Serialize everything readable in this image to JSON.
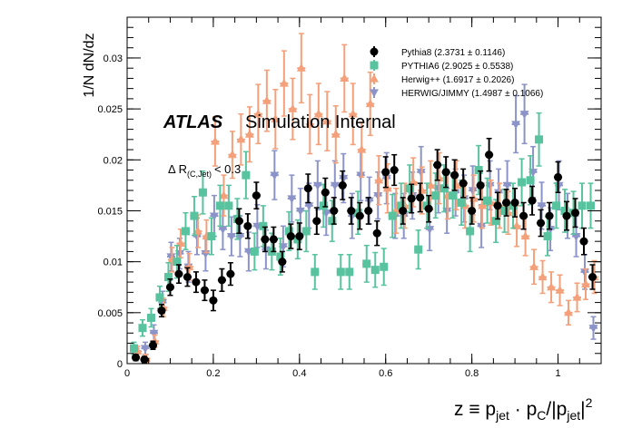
{
  "chart_data": {
    "type": "scatter",
    "ylabel": "1/N dN/dz",
    "xlabel_main": "z ≡ p",
    "xlabel_sub1": "jet",
    "xlabel_dot": " · p",
    "xlabel_sub2": "C",
    "xlabel_slash": "/|p",
    "xlabel_sub3": "jet",
    "xlabel_bar": "|",
    "xlabel_sup": "2",
    "xlim": [
      0,
      1.1
    ],
    "ylim": [
      0,
      0.034
    ],
    "x_ticks": [
      0,
      0.2,
      0.4,
      0.6,
      0.8,
      1
    ],
    "x_tick_labels": [
      "0",
      "0.2",
      "0.4",
      "0.6",
      "0.8",
      "1"
    ],
    "y_ticks": [
      0,
      0.005,
      0.01,
      0.015,
      0.02,
      0.025,
      0.03
    ],
    "y_tick_labels": [
      "0",
      "0.005",
      "0.01",
      "0.015",
      "0.02",
      "0.025",
      "0.03"
    ],
    "atlas_label": "ATLAS",
    "atlas_sublabel": "Simulation Internal",
    "cut_delta": "Δ R",
    "cut_sub": "(C,Jet)",
    "cut_value": "< 0.3",
    "legend_position": "top-right",
    "series": [
      {
        "name": "Pythia8 (2.3731 ± 0.1146)",
        "color": "#000000",
        "marker": "circle",
        "points": [
          [
            0.02,
            0.0006,
            0.0003
          ],
          [
            0.04,
            0.0004,
            0.0003
          ],
          [
            0.06,
            0.0018,
            0.0004
          ],
          [
            0.08,
            0.0052,
            0.0006
          ],
          [
            0.1,
            0.0075,
            0.0008
          ],
          [
            0.12,
            0.0088,
            0.0009
          ],
          [
            0.14,
            0.0085,
            0.0009
          ],
          [
            0.16,
            0.008,
            0.001
          ],
          [
            0.18,
            0.0072,
            0.001
          ],
          [
            0.2,
            0.0062,
            0.001
          ],
          [
            0.22,
            0.0082,
            0.0011
          ],
          [
            0.24,
            0.0088,
            0.0011
          ],
          [
            0.26,
            0.014,
            0.0012
          ],
          [
            0.28,
            0.0135,
            0.0012
          ],
          [
            0.3,
            0.0165,
            0.0013
          ],
          [
            0.32,
            0.0122,
            0.0012
          ],
          [
            0.34,
            0.0122,
            0.0012
          ],
          [
            0.36,
            0.01,
            0.001
          ],
          [
            0.38,
            0.0125,
            0.0012
          ],
          [
            0.4,
            0.0125,
            0.0013
          ],
          [
            0.42,
            0.0172,
            0.0014
          ],
          [
            0.44,
            0.014,
            0.0013
          ],
          [
            0.46,
            0.0168,
            0.0014
          ],
          [
            0.48,
            0.015,
            0.0013
          ],
          [
            0.5,
            0.0175,
            0.0014
          ],
          [
            0.52,
            0.015,
            0.0013
          ],
          [
            0.54,
            0.0145,
            0.0013
          ],
          [
            0.56,
            0.015,
            0.0013
          ],
          [
            0.58,
            0.0128,
            0.0012
          ],
          [
            0.6,
            0.0188,
            0.0015
          ],
          [
            0.62,
            0.019,
            0.0015
          ],
          [
            0.64,
            0.015,
            0.0013
          ],
          [
            0.66,
            0.0162,
            0.0014
          ],
          [
            0.68,
            0.0163,
            0.0014
          ],
          [
            0.7,
            0.0152,
            0.0013
          ],
          [
            0.72,
            0.0195,
            0.0015
          ],
          [
            0.74,
            0.0188,
            0.0015
          ],
          [
            0.76,
            0.0185,
            0.0015
          ],
          [
            0.78,
            0.0177,
            0.0014
          ],
          [
            0.8,
            0.015,
            0.0013
          ],
          [
            0.82,
            0.0175,
            0.0014
          ],
          [
            0.84,
            0.0205,
            0.0016
          ],
          [
            0.86,
            0.0155,
            0.0013
          ],
          [
            0.88,
            0.0158,
            0.0013
          ],
          [
            0.9,
            0.0158,
            0.0014
          ],
          [
            0.92,
            0.0145,
            0.0013
          ],
          [
            0.94,
            0.016,
            0.0014
          ],
          [
            0.96,
            0.0138,
            0.0013
          ],
          [
            0.98,
            0.0145,
            0.0013
          ],
          [
            1.0,
            0.0183,
            0.0015
          ],
          [
            1.02,
            0.0145,
            0.0014
          ],
          [
            1.04,
            0.0148,
            0.0014
          ],
          [
            1.06,
            0.012,
            0.0013
          ],
          [
            1.08,
            0.0085,
            0.0012
          ]
        ]
      },
      {
        "name": "PYTHIA6 (2.9025 ± 0.5538)",
        "color": "#58c39e",
        "marker": "square",
        "points": [
          [
            0.02,
            0.0015,
            0.0006
          ],
          [
            0.04,
            0.0035,
            0.0008
          ],
          [
            0.06,
            0.0045,
            0.0009
          ],
          [
            0.08,
            0.0065,
            0.0011
          ],
          [
            0.1,
            0.0085,
            0.0014
          ],
          [
            0.12,
            0.01,
            0.0016
          ],
          [
            0.14,
            0.013,
            0.0018
          ],
          [
            0.16,
            0.0145,
            0.0019
          ],
          [
            0.18,
            0.0168,
            0.0021
          ],
          [
            0.2,
            0.0125,
            0.0018
          ],
          [
            0.22,
            0.0155,
            0.002
          ],
          [
            0.24,
            0.0155,
            0.002
          ],
          [
            0.26,
            0.0142,
            0.002
          ],
          [
            0.28,
            0.0185,
            0.0023
          ],
          [
            0.3,
            0.011,
            0.0018
          ],
          [
            0.32,
            0.0135,
            0.002
          ],
          [
            0.34,
            0.011,
            0.0018
          ],
          [
            0.36,
            0.0105,
            0.0018
          ],
          [
            0.38,
            0.013,
            0.0019
          ],
          [
            0.4,
            0.0122,
            0.0019
          ],
          [
            0.42,
            0.013,
            0.002
          ],
          [
            0.44,
            0.009,
            0.0017
          ],
          [
            0.46,
            0.0155,
            0.0021
          ],
          [
            0.48,
            0.014,
            0.002
          ],
          [
            0.5,
            0.009,
            0.0017
          ],
          [
            0.52,
            0.009,
            0.0017
          ],
          [
            0.54,
            0.0148,
            0.0021
          ],
          [
            0.56,
            0.0098,
            0.0018
          ],
          [
            0.58,
            0.0092,
            0.0017
          ],
          [
            0.6,
            0.0095,
            0.0018
          ],
          [
            0.62,
            0.0145,
            0.0021
          ],
          [
            0.64,
            0.0155,
            0.0022
          ],
          [
            0.66,
            0.0172,
            0.0023
          ],
          [
            0.68,
            0.0112,
            0.0019
          ],
          [
            0.7,
            0.0155,
            0.0022
          ],
          [
            0.72,
            0.0165,
            0.0022
          ],
          [
            0.74,
            0.0172,
            0.0023
          ],
          [
            0.76,
            0.0165,
            0.0022
          ],
          [
            0.78,
            0.0158,
            0.0022
          ],
          [
            0.8,
            0.013,
            0.002
          ],
          [
            0.82,
            0.019,
            0.0024
          ],
          [
            0.84,
            0.016,
            0.0022
          ],
          [
            0.86,
            0.014,
            0.0021
          ],
          [
            0.88,
            0.015,
            0.0021
          ],
          [
            0.9,
            0.0155,
            0.0022
          ],
          [
            0.92,
            0.0178,
            0.0023
          ],
          [
            0.94,
            0.018,
            0.0024
          ],
          [
            0.96,
            0.022,
            0.0026
          ],
          [
            0.98,
            0.0125,
            0.0019
          ],
          [
            1.0,
            0.0155,
            0.0022
          ],
          [
            1.02,
            0.015,
            0.0021
          ],
          [
            1.04,
            0.0148,
            0.0021
          ],
          [
            1.06,
            0.0155,
            0.0022
          ],
          [
            1.08,
            0.0155,
            0.0022
          ]
        ]
      },
      {
        "name": "Herwig++ (1.6917 ± 0.2026)",
        "color": "#f4a07a",
        "marker": "triangle-up",
        "points": [
          [
            0.02,
            0.0012,
            0.0005
          ],
          [
            0.04,
            0.0005,
            0.0004
          ],
          [
            0.06,
            0.0022,
            0.0006
          ],
          [
            0.08,
            0.0055,
            0.0009
          ],
          [
            0.1,
            0.0102,
            0.0012
          ],
          [
            0.12,
            0.0118,
            0.0014
          ],
          [
            0.14,
            0.0095,
            0.0013
          ],
          [
            0.16,
            0.013,
            0.0016
          ],
          [
            0.18,
            0.0125,
            0.0016
          ],
          [
            0.2,
            0.0218,
            0.0024
          ],
          [
            0.22,
            0.0165,
            0.002
          ],
          [
            0.24,
            0.0205,
            0.0023
          ],
          [
            0.26,
            0.022,
            0.0025
          ],
          [
            0.28,
            0.0225,
            0.0027
          ],
          [
            0.3,
            0.0245,
            0.0029
          ],
          [
            0.32,
            0.0258,
            0.003
          ],
          [
            0.34,
            0.024,
            0.0029
          ],
          [
            0.36,
            0.0275,
            0.0032
          ],
          [
            0.38,
            0.025,
            0.003
          ],
          [
            0.4,
            0.029,
            0.0034
          ],
          [
            0.42,
            0.0235,
            0.0029
          ],
          [
            0.44,
            0.0245,
            0.003
          ],
          [
            0.46,
            0.0238,
            0.0029
          ],
          [
            0.48,
            0.0225,
            0.0028
          ],
          [
            0.5,
            0.028,
            0.0033
          ],
          [
            0.52,
            0.0245,
            0.003
          ],
          [
            0.54,
            0.021,
            0.0027
          ],
          [
            0.56,
            0.0255,
            0.0031
          ],
          [
            0.58,
            0.018,
            0.0024
          ],
          [
            0.6,
            0.0172,
            0.0024
          ],
          [
            0.62,
            0.015,
            0.0022
          ],
          [
            0.64,
            0.0155,
            0.0022
          ],
          [
            0.66,
            0.0178,
            0.0024
          ],
          [
            0.68,
            0.017,
            0.0023
          ],
          [
            0.7,
            0.0175,
            0.0024
          ],
          [
            0.72,
            0.0182,
            0.0025
          ],
          [
            0.74,
            0.0165,
            0.0023
          ],
          [
            0.76,
            0.0175,
            0.0024
          ],
          [
            0.78,
            0.0155,
            0.0022
          ],
          [
            0.8,
            0.0162,
            0.0023
          ],
          [
            0.82,
            0.0155,
            0.0022
          ],
          [
            0.84,
            0.0158,
            0.0022
          ],
          [
            0.86,
            0.0155,
            0.0022
          ],
          [
            0.88,
            0.0148,
            0.0021
          ],
          [
            0.9,
            0.0135,
            0.002
          ],
          [
            0.92,
            0.0125,
            0.0019
          ],
          [
            0.94,
            0.0095,
            0.0017
          ],
          [
            0.96,
            0.0085,
            0.0016
          ],
          [
            0.98,
            0.0075,
            0.0015
          ],
          [
            1.0,
            0.0072,
            0.0015
          ],
          [
            1.02,
            0.005,
            0.0012
          ],
          [
            1.04,
            0.0065,
            0.0014
          ],
          [
            1.06,
            0.0078,
            0.0015
          ],
          [
            1.08,
            0.0085,
            0.0016
          ]
        ]
      },
      {
        "name": "HERWIG/JIMMY (1.4987 ± 0.1066)",
        "color": "#8b93c8",
        "marker": "triangle-down",
        "points": [
          [
            0.02,
            0.001,
            0.0005
          ],
          [
            0.04,
            0.0015,
            0.0006
          ],
          [
            0.06,
            0.003,
            0.0008
          ],
          [
            0.08,
            0.006,
            0.0011
          ],
          [
            0.1,
            0.0105,
            0.0014
          ],
          [
            0.12,
            0.0108,
            0.0015
          ],
          [
            0.14,
            0.0095,
            0.0015
          ],
          [
            0.16,
            0.0125,
            0.0018
          ],
          [
            0.18,
            0.0108,
            0.0017
          ],
          [
            0.2,
            0.0145,
            0.002
          ],
          [
            0.22,
            0.0132,
            0.002
          ],
          [
            0.24,
            0.0125,
            0.0019
          ],
          [
            0.26,
            0.0125,
            0.002
          ],
          [
            0.28,
            0.011,
            0.0019
          ],
          [
            0.3,
            0.0135,
            0.0021
          ],
          [
            0.32,
            0.0112,
            0.0019
          ],
          [
            0.34,
            0.0185,
            0.0024
          ],
          [
            0.36,
            0.0115,
            0.002
          ],
          [
            0.38,
            0.0162,
            0.0023
          ],
          [
            0.4,
            0.015,
            0.0022
          ],
          [
            0.42,
            0.0155,
            0.0022
          ],
          [
            0.44,
            0.0175,
            0.0024
          ],
          [
            0.46,
            0.0148,
            0.0022
          ],
          [
            0.48,
            0.0175,
            0.0024
          ],
          [
            0.5,
            0.0182,
            0.0024
          ],
          [
            0.52,
            0.0145,
            0.0022
          ],
          [
            0.54,
            0.0185,
            0.0025
          ],
          [
            0.56,
            0.016,
            0.0023
          ],
          [
            0.58,
            0.0165,
            0.0023
          ],
          [
            0.6,
            0.0182,
            0.0025
          ],
          [
            0.62,
            0.0145,
            0.0022
          ],
          [
            0.64,
            0.0145,
            0.0022
          ],
          [
            0.66,
            0.0165,
            0.0023
          ],
          [
            0.68,
            0.0188,
            0.0025
          ],
          [
            0.7,
            0.0132,
            0.0021
          ],
          [
            0.72,
            0.0172,
            0.0024
          ],
          [
            0.74,
            0.015,
            0.0022
          ],
          [
            0.76,
            0.0168,
            0.0023
          ],
          [
            0.78,
            0.0162,
            0.0023
          ],
          [
            0.8,
            0.017,
            0.0024
          ],
          [
            0.82,
            0.0135,
            0.0021
          ],
          [
            0.84,
            0.0175,
            0.0024
          ],
          [
            0.86,
            0.0168,
            0.0023
          ],
          [
            0.88,
            0.0175,
            0.0024
          ],
          [
            0.9,
            0.0235,
            0.0028
          ],
          [
            0.92,
            0.0245,
            0.0029
          ],
          [
            0.94,
            0.0188,
            0.0025
          ],
          [
            0.96,
            0.0155,
            0.0023
          ],
          [
            0.98,
            0.0132,
            0.0021
          ],
          [
            1.0,
            0.0175,
            0.0024
          ],
          [
            1.02,
            0.0145,
            0.0022
          ],
          [
            1.04,
            0.0125,
            0.002
          ],
          [
            1.06,
            0.009,
            0.0017
          ],
          [
            1.08,
            0.0035,
            0.0011
          ]
        ]
      }
    ]
  }
}
